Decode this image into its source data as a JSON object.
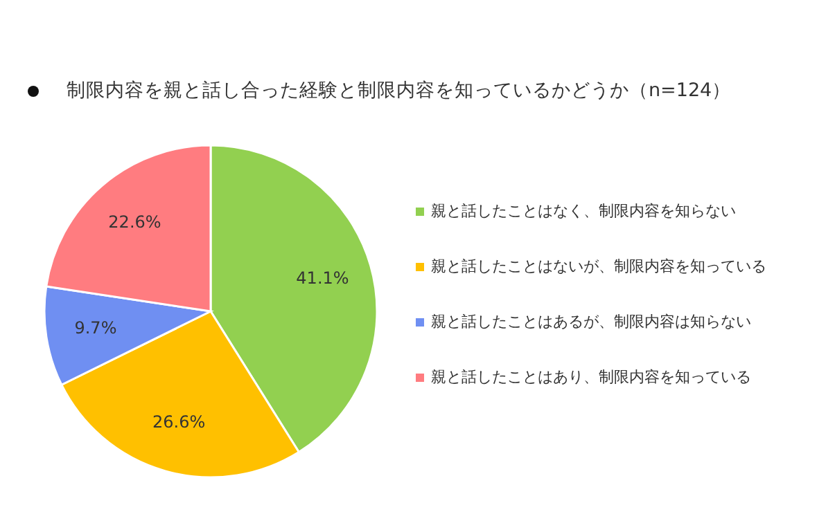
{
  "chart_data": {
    "type": "pie",
    "title": "制限内容を親と話し合った経験と制限内容を知っているかどうか（n=124）",
    "categories": [
      "親と話したことはなく、制限内容を知らない",
      "親と話したことはないが、制限内容を知っている",
      "親と話したことはあるが、制限内容は知らない",
      "親と話したことはあり、制限内容を知っている"
    ],
    "values": [
      41.1,
      26.6,
      9.7,
      22.6
    ],
    "colors": [
      "#92d050",
      "#ffc000",
      "#6f8ff2",
      "#ff7c80"
    ],
    "value_labels": [
      "41.1%",
      "26.6%",
      "9.7%",
      "22.6%"
    ],
    "legend": "right"
  }
}
